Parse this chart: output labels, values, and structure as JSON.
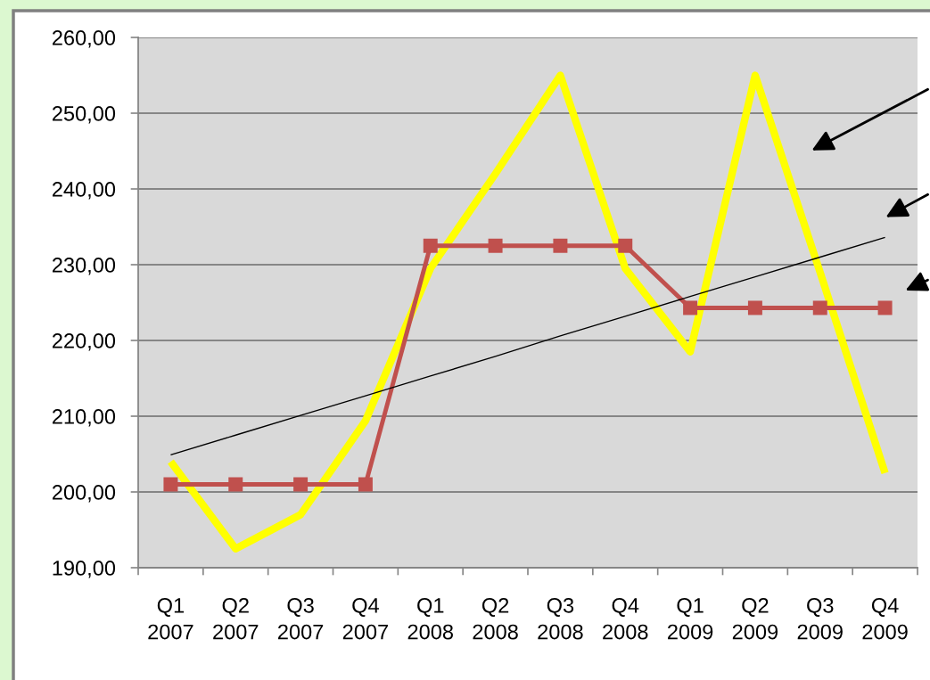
{
  "chart_data": {
    "type": "line",
    "categories": [
      "Q1\n2007",
      "Q2\n2007",
      "Q3\n2007",
      "Q4\n2007",
      "Q1\n2008",
      "Q2\n2008",
      "Q3\n2008",
      "Q4\n2008",
      "Q1\n2009",
      "Q2\n2009",
      "Q3\n2009",
      "Q4\n2009"
    ],
    "series": [
      {
        "color": "#ffff00",
        "values": [
          204,
          192.5,
          197,
          209.4,
          229.5,
          242,
          255,
          229.5,
          218.5,
          255,
          229,
          202.5
        ]
      },
      {
        "color": "#c0504d",
        "marker": "square",
        "values": [
          201,
          201,
          201,
          201,
          232.5,
          232.5,
          232.5,
          232.5,
          224.3,
          224.3,
          224.3,
          224.3
        ]
      },
      {
        "type": "line",
        "color": "#000000",
        "values": [
          204.9,
          207.5,
          210.1,
          212.7,
          215.3,
          217.9,
          220.6,
          223.2,
          225.8,
          228.4,
          231.0,
          233.6
        ]
      }
    ],
    "ylim": [
      190,
      260
    ],
    "yticks": [
      {
        "value": 190,
        "label": "190,00"
      },
      {
        "value": 200,
        "label": "200,00"
      },
      {
        "value": 210,
        "label": "210,00"
      },
      {
        "value": 220,
        "label": "220,00"
      },
      {
        "value": 230,
        "label": "230,00"
      },
      {
        "value": 240,
        "label": "240,00"
      },
      {
        "value": 250,
        "label": "250,00"
      },
      {
        "value": 260,
        "label": "260,00"
      }
    ],
    "grid": "y"
  }
}
